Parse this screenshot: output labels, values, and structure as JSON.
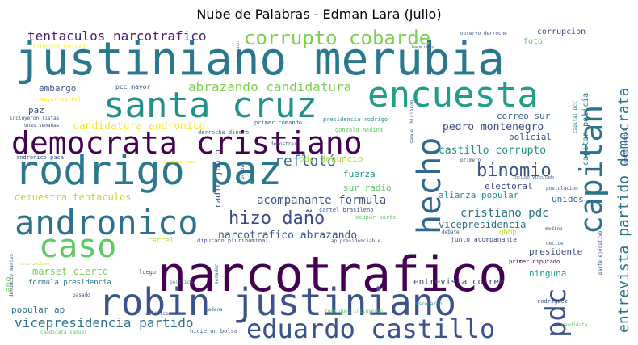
{
  "title": "Nube de Palabras - Edman Lara (Julio)",
  "chart_data": {
    "type": "wordcloud",
    "title": "Nube de Palabras - Edman Lara (Julio)",
    "words": [
      {
        "text": "justiniano merubia",
        "color": "#2a788e"
      },
      {
        "text": "narcotrafico",
        "color": "#440154"
      },
      {
        "text": "rodrigo paz",
        "color": "#2a788e"
      },
      {
        "text": "democrata cristiano",
        "color": "#440154"
      },
      {
        "text": "robin justiniano",
        "color": "#3b528b"
      },
      {
        "text": "santa cruz",
        "color": "#21918c"
      },
      {
        "text": "encuesta",
        "color": "#1f9e89"
      },
      {
        "text": "andronico",
        "color": "#2c728e"
      },
      {
        "text": "caso",
        "color": "#5ec962"
      },
      {
        "text": "hecho",
        "color": "#31688e"
      },
      {
        "text": "capitan",
        "color": "#2c728e"
      },
      {
        "text": "eduardo castillo",
        "color": "#3b528b"
      },
      {
        "text": "pdc",
        "color": "#3b528b"
      },
      {
        "text": "corrupto cobarde",
        "color": "#7ad151"
      },
      {
        "text": "entrevista partido democrata",
        "color": "#2c728e"
      },
      {
        "text": "hizo daño",
        "color": "#3e4989"
      },
      {
        "text": "binomio",
        "color": "#3b528b"
      },
      {
        "text": "reflotó",
        "color": "#2e6e8e"
      },
      {
        "text": "tentaculos narcotrafico",
        "color": "#482173"
      },
      {
        "text": "vicepresidencia partido",
        "color": "#2c728e"
      },
      {
        "text": "abrazando candidatura",
        "color": "#7ad151"
      },
      {
        "text": "narcotrafico abrazando",
        "color": "#3b528b"
      },
      {
        "text": "acompanante formula",
        "color": "#3b528b"
      },
      {
        "text": "cristiano pdc",
        "color": "#2c728e"
      },
      {
        "text": "castillo corrupto",
        "color": "#21918c"
      },
      {
        "text": "pedro montenegro",
        "color": "#3e4989"
      },
      {
        "text": "candidatura andronico",
        "color": "#fde725"
      },
      {
        "text": "demuestra tentaculos",
        "color": "#b5de2b"
      },
      {
        "text": "marset cierto",
        "color": "#7ad151"
      },
      {
        "text": "vicepresidencia",
        "color": "#2c728e"
      },
      {
        "text": "alianza popular",
        "color": "#21918c"
      },
      {
        "text": "entrevista correo",
        "color": "#3e4989"
      },
      {
        "text": "radio junto",
        "color": "#3b528b"
      },
      {
        "text": "capitan policia",
        "color": "#26828e"
      },
      {
        "text": "sur radio",
        "color": "#5ec962"
      },
      {
        "text": "fuerza",
        "color": "#21918c"
      },
      {
        "text": "electoral",
        "color": "#3e4989"
      },
      {
        "text": "correo sur",
        "color": "#31688e"
      },
      {
        "text": "policial",
        "color": "#3b528b"
      },
      {
        "text": "pdc denuncio",
        "color": "#b5de2b"
      },
      {
        "text": "embargo",
        "color": "#3b528b"
      },
      {
        "text": "paz",
        "color": "#3b528b"
      },
      {
        "text": "foto",
        "color": "#5ec962"
      },
      {
        "text": "corrupcion",
        "color": "#3b528b"
      },
      {
        "text": "unidos",
        "color": "#2c728e"
      },
      {
        "text": "presidente",
        "color": "#3e4989"
      },
      {
        "text": "ninguna",
        "color": "#1f9e89"
      },
      {
        "text": "popular ap",
        "color": "#2c728e"
      },
      {
        "text": "formula presidencia",
        "color": "#2c728e"
      },
      {
        "text": "carcel",
        "color": "#b5de2b"
      },
      {
        "text": "qhmp",
        "color": "#b5de2b"
      },
      {
        "text": "ano",
        "color": "#7ad151"
      },
      {
        "text": "pcc mayor",
        "color": "#3b528b"
      },
      {
        "text": "ilusion volver",
        "color": "#fde725"
      },
      {
        "text": "mayor cartel",
        "color": "#fde725"
      },
      {
        "text": "incluyeron listas",
        "color": "#3b528b"
      },
      {
        "text": "unas semanas",
        "color": "#3b528b"
      },
      {
        "text": "andronico pasa",
        "color": "#3b528b"
      },
      {
        "text": "derroche dinero",
        "color": "#2c728e"
      },
      {
        "text": "primer comando",
        "color": "#31688e"
      },
      {
        "text": "presidencia rodrigo",
        "color": "#21918c"
      },
      {
        "text": "gonzalo medina",
        "color": "#5ec962"
      },
      {
        "text": "samuel hicieron",
        "color": "#3b528b"
      },
      {
        "text": "demostrar",
        "color": "#3b528b"
      },
      {
        "text": "probar",
        "color": "#3b528b"
      },
      {
        "text": "cartel brasileno",
        "color": "#3b528b"
      },
      {
        "text": "ocupar parte",
        "color": "#5ec962"
      },
      {
        "text": "diputado plurinominal",
        "color": "#3b528b"
      },
      {
        "text": "ap presidenciable",
        "color": "#3b528b"
      },
      {
        "text": "junto acompanante",
        "color": "#3e4989"
      },
      {
        "text": "primer diputado",
        "color": "#440154"
      },
      {
        "text": "parte ejecutivo",
        "color": "#3b528b"
      },
      {
        "text": "medina",
        "color": "#3b528b"
      },
      {
        "text": "decide",
        "color": "#2c728e"
      },
      {
        "text": "debate",
        "color": "#3b528b"
      },
      {
        "text": "postulacion",
        "color": "#3b528b"
      },
      {
        "text": "incluso vinculado",
        "color": "#3b528b"
      },
      {
        "text": "comando capital",
        "color": "#3b528b"
      },
      {
        "text": "capital pcc",
        "color": "#26828e"
      },
      {
        "text": "primero",
        "color": "#3b528b"
      },
      {
        "text": "intencion",
        "color": "#3b528b"
      },
      {
        "text": "hace unas",
        "color": "#3b528b"
      },
      {
        "text": "observo derroche",
        "color": "#3b528b"
      },
      {
        "text": "vinculado baca",
        "color": "#fde725"
      },
      {
        "text": "denuncio martes",
        "color": "#3b528b"
      },
      {
        "text": "cruz incluso",
        "color": "#b5de2b"
      },
      {
        "text": "pasado",
        "color": "#3b528b"
      },
      {
        "text": "luego",
        "color": "#3b528b"
      },
      {
        "text": "politico",
        "color": "#21918c"
      },
      {
        "text": "senador",
        "color": "#2c728e"
      },
      {
        "text": "califico",
        "color": "#3b528b"
      },
      {
        "text": "cadena",
        "color": "#2c728e"
      },
      {
        "text": "rodriguez incluyeron",
        "color": "#5ec962"
      },
      {
        "text": "escenario",
        "color": "#21918c"
      },
      {
        "text": "rodriguez",
        "color": "#3b528b"
      },
      {
        "text": "candidata",
        "color": "#5ec962"
      },
      {
        "text": "candidata samuel",
        "color": "#5ec962"
      },
      {
        "text": "hicieron bolsa",
        "color": "#3b528b"
      }
    ]
  }
}
